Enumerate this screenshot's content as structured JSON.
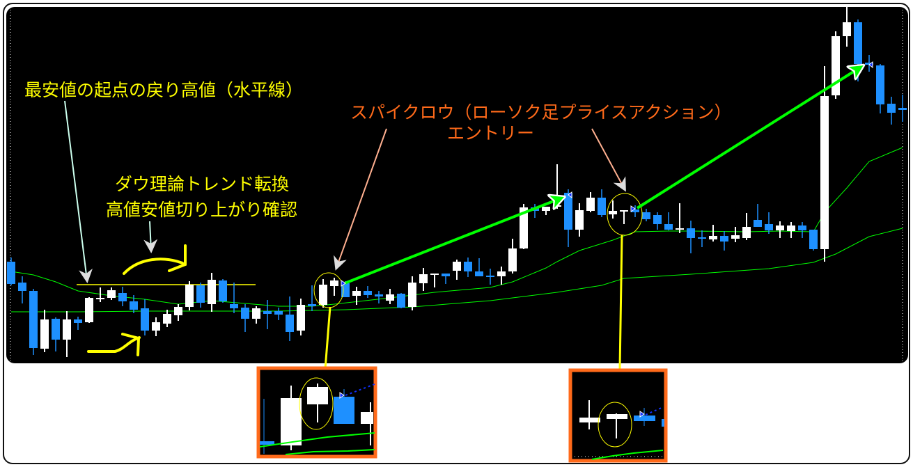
{
  "annotations": {
    "horizontal_line_label": "最安値の起点の戻り高値（水平線）",
    "dow_line1": "ダウ理論トレンド転換",
    "dow_line2": "高値安値切り上がり確認",
    "entry_line1": "スパイクロウ（ローソク足プライスアクション）",
    "entry_line2": "エントリー"
  },
  "colors": {
    "background": "#000000",
    "bull_candle": "#ffffff",
    "bear_candle": "#1e90ff",
    "moving_average": "#00ff00",
    "annotation_yellow": "#ffff00",
    "annotation_orange": "#ff6a1a",
    "trade_arrow": "#00ff00",
    "inset_border": "#ff6a1a"
  },
  "chart_data": {
    "type": "candlestick",
    "title": "",
    "xlabel": "",
    "ylabel": "",
    "ylim": [
      8,
      518
    ],
    "grid": false,
    "candles_ohlc": [
      [
        154,
        160,
        120,
        122
      ],
      [
        124,
        133,
        94,
        112
      ],
      [
        112,
        115,
        20,
        30
      ],
      [
        29,
        85,
        24,
        71
      ],
      [
        72,
        74,
        25,
        42
      ],
      [
        42,
        83,
        17,
        71
      ],
      [
        71,
        75,
        56,
        66
      ],
      [
        67,
        103,
        66,
        102
      ],
      [
        100,
        117,
        96,
        102
      ],
      [
        102,
        117,
        99,
        113
      ],
      [
        109,
        118,
        90,
        97
      ],
      [
        97,
        106,
        80,
        85
      ],
      [
        87,
        100,
        48,
        55
      ],
      [
        55,
        74,
        47,
        67
      ],
      [
        65,
        85,
        60,
        79
      ],
      [
        77,
        93,
        69,
        89
      ],
      [
        89,
        126,
        84,
        121
      ],
      [
        120,
        124,
        88,
        95
      ],
      [
        93,
        138,
        82,
        128
      ],
      [
        127,
        129,
        95,
        97
      ],
      [
        93,
        124,
        80,
        87
      ],
      [
        88,
        93,
        53,
        72
      ],
      [
        72,
        90,
        65,
        87
      ],
      [
        83,
        99,
        57,
        79
      ],
      [
        83,
        88,
        70,
        78
      ],
      [
        78,
        104,
        40,
        53
      ],
      [
        55,
        101,
        48,
        92
      ],
      [
        93,
        120,
        83,
        90
      ],
      [
        92,
        129,
        88,
        121
      ],
      [
        119,
        131,
        105,
        127
      ],
      [
        123,
        126,
        103,
        103
      ],
      [
        105,
        118,
        92,
        112
      ],
      [
        112,
        119,
        102,
        106
      ],
      [
        107,
        112,
        94,
        104
      ],
      [
        98,
        115,
        93,
        107
      ],
      [
        108,
        109,
        87,
        88
      ],
      [
        89,
        133,
        84,
        124
      ],
      [
        123,
        145,
        112,
        136
      ],
      [
        135,
        137,
        117,
        137
      ],
      [
        137,
        137,
        122,
        133
      ],
      [
        141,
        157,
        128,
        154
      ],
      [
        154,
        160,
        132,
        140
      ],
      [
        140,
        159,
        133,
        133
      ],
      [
        134,
        144,
        121,
        132
      ],
      [
        133,
        147,
        121,
        140
      ],
      [
        140,
        187,
        137,
        173
      ],
      [
        173,
        237,
        172,
        232
      ],
      [
        232,
        237,
        217,
        227
      ],
      [
        227,
        233,
        221,
        233
      ],
      [
        233,
        294,
        230,
        235
      ],
      [
        253,
        258,
        175,
        200
      ],
      [
        200,
        238,
        190,
        228
      ],
      [
        227,
        254,
        225,
        246
      ],
      [
        246,
        258,
        218,
        221
      ],
      [
        222,
        242,
        216,
        227
      ],
      [
        226,
        228,
        208,
        228
      ],
      [
        229,
        235,
        218,
        225
      ],
      [
        225,
        230,
        212,
        215
      ],
      [
        221,
        225,
        200,
        208
      ],
      [
        208,
        225,
        199,
        200
      ],
      [
        200,
        238,
        195,
        202
      ],
      [
        202,
        213,
        166,
        188
      ],
      [
        189,
        199,
        175,
        187
      ],
      [
        186,
        207,
        183,
        191
      ],
      [
        191,
        198,
        170,
        183
      ],
      [
        187,
        204,
        182,
        192
      ],
      [
        188,
        224,
        185,
        204
      ],
      [
        214,
        237,
        204,
        204
      ],
      [
        208,
        225,
        194,
        199
      ],
      [
        199,
        212,
        188,
        206
      ],
      [
        198,
        211,
        188,
        206
      ],
      [
        206,
        211,
        188,
        199
      ],
      [
        200,
        200,
        170,
        172
      ],
      [
        172,
        435,
        154,
        392
      ],
      [
        393,
        485,
        388,
        478
      ],
      [
        478,
        524,
        463,
        498
      ],
      [
        498,
        502,
        413,
        438
      ],
      [
        440,
        451,
        427,
        437
      ],
      [
        436,
        438,
        367,
        380
      ],
      [
        381,
        391,
        351,
        368
      ],
      [
        375,
        394,
        355,
        372
      ]
    ],
    "moving_averages": [
      {
        "points": [
          [
            0,
            140
          ],
          [
            2,
            135
          ],
          [
            4,
            125
          ],
          [
            6,
            112
          ],
          [
            9,
            105
          ],
          [
            12,
            100
          ],
          [
            15,
            93
          ],
          [
            18,
            98
          ],
          [
            21,
            94
          ],
          [
            24,
            90
          ],
          [
            27,
            90
          ],
          [
            29,
            93
          ],
          [
            34,
            102
          ],
          [
            38,
            110
          ],
          [
            43,
            117
          ],
          [
            45,
            125
          ],
          [
            48,
            145
          ],
          [
            49,
            154
          ],
          [
            51,
            170
          ],
          [
            54,
            185
          ],
          [
            56,
            197
          ],
          [
            59,
            198
          ],
          [
            61,
            198
          ],
          [
            66,
            197
          ],
          [
            69,
            198
          ],
          [
            72,
            197
          ],
          [
            73,
            225
          ],
          [
            75,
            260
          ],
          [
            77,
            298
          ],
          [
            80,
            318
          ]
        ]
      },
      {
        "points": [
          [
            0,
            82
          ],
          [
            6,
            82
          ],
          [
            12,
            83
          ],
          [
            18,
            83
          ],
          [
            24,
            83
          ],
          [
            27,
            84
          ],
          [
            30,
            85
          ],
          [
            36,
            89
          ],
          [
            43,
            98
          ],
          [
            49,
            110
          ],
          [
            53,
            120
          ],
          [
            55,
            130
          ],
          [
            61,
            136
          ],
          [
            68,
            144
          ],
          [
            72,
            153
          ],
          [
            74,
            165
          ],
          [
            77,
            190
          ],
          [
            80,
            202
          ]
        ]
      }
    ],
    "horizontal_level": {
      "value": 121,
      "from_index": 6,
      "to_index": 22
    },
    "entries": [
      {
        "index": 30,
        "price": 123,
        "target_index": 50,
        "target_price": 250
      },
      {
        "index": 56,
        "price": 230,
        "target_index": 77,
        "target_price": 438
      }
    ]
  }
}
